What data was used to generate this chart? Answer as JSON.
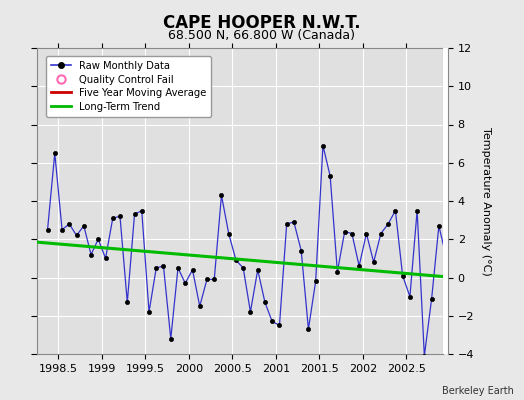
{
  "title": "CAPE HOOPER N.W.T.",
  "subtitle": "68.500 N, 66.800 W (Canada)",
  "ylabel": "Temperature Anomaly (°C)",
  "credit": "Berkeley Earth",
  "xlim": [
    1998.25,
    2002.92
  ],
  "ylim": [
    -4,
    12
  ],
  "yticks": [
    -4,
    -2,
    0,
    2,
    4,
    6,
    8,
    10,
    12
  ],
  "xticks": [
    1998.5,
    1999.0,
    1999.5,
    2000.0,
    2000.5,
    2001.0,
    2001.5,
    2002.0,
    2002.5
  ],
  "xtick_labels": [
    "1998.5",
    "1999",
    "1999.5",
    "2000",
    "2000.5",
    "2001",
    "2001.5",
    "2002",
    "2002.5"
  ],
  "monthly_x": [
    1998.375,
    1998.458,
    1998.542,
    1998.625,
    1998.708,
    1998.792,
    1998.875,
    1998.958,
    1999.042,
    1999.125,
    1999.208,
    1999.292,
    1999.375,
    1999.458,
    1999.542,
    1999.625,
    1999.708,
    1999.792,
    1999.875,
    1999.958,
    2000.042,
    2000.125,
    2000.208,
    2000.292,
    2000.375,
    2000.458,
    2000.542,
    2000.625,
    2000.708,
    2000.792,
    2000.875,
    2000.958,
    2001.042,
    2001.125,
    2001.208,
    2001.292,
    2001.375,
    2001.458,
    2001.542,
    2001.625,
    2001.708,
    2001.792,
    2001.875,
    2001.958,
    2002.042,
    2002.125,
    2002.208,
    2002.292,
    2002.375,
    2002.458,
    2002.542,
    2002.625,
    2002.708,
    2002.792,
    2002.875,
    2002.958
  ],
  "monthly_y": [
    2.5,
    6.5,
    2.5,
    2.8,
    2.2,
    2.7,
    1.2,
    2.0,
    1.0,
    3.1,
    3.2,
    -1.3,
    3.3,
    3.5,
    -1.8,
    0.5,
    0.6,
    -3.2,
    0.5,
    -0.3,
    0.4,
    -1.5,
    -0.1,
    -0.1,
    4.3,
    2.3,
    0.9,
    0.5,
    -1.8,
    0.4,
    -1.3,
    -2.3,
    -2.5,
    2.8,
    2.9,
    1.4,
    -2.7,
    -0.2,
    6.9,
    5.3,
    0.3,
    2.4,
    2.3,
    0.6,
    2.3,
    0.8,
    2.3,
    2.8,
    3.5,
    0.1,
    -1.0,
    3.5,
    -4.1,
    -1.1,
    2.7,
    1.1
  ],
  "trend_x": [
    1998.25,
    2002.92
  ],
  "trend_y": [
    1.85,
    0.05
  ],
  "line_color": "#3333cc",
  "marker_color": "#000000",
  "trend_color": "#00bb00",
  "bg_color": "#e8e8e8",
  "plot_bg_color": "#e0e0e0",
  "title_fontsize": 12,
  "subtitle_fontsize": 9,
  "tick_fontsize": 8,
  "ylabel_fontsize": 8
}
